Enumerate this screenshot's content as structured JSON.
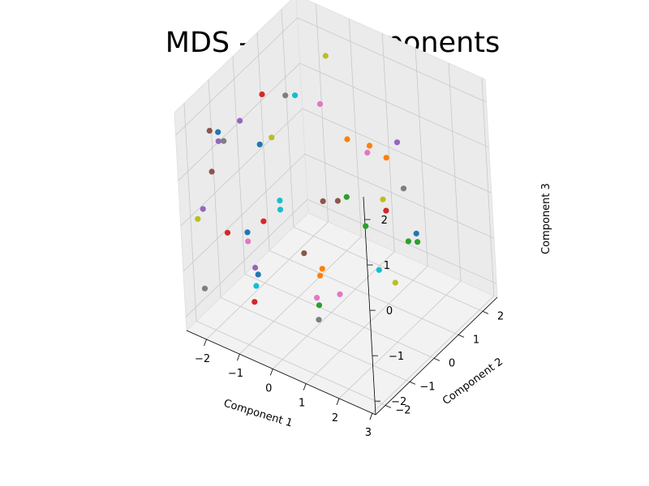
{
  "chart_data": {
    "type": "scatter",
    "title": "MDS - Two Components",
    "xlabel": "Component 1",
    "ylabel": "Component 2",
    "zlabel": "Component 3",
    "xlim": [
      -2.6,
      3.1
    ],
    "ylim": [
      -2.4,
      2.6
    ],
    "zlim": [
      -2.3,
      2.5
    ],
    "xticks": [
      -2,
      -1,
      0,
      1,
      2,
      3
    ],
    "yticks": [
      -2,
      -1,
      0,
      1,
      2
    ],
    "zticks": [
      -2,
      -1,
      0,
      1,
      2
    ],
    "xtick_labels": [
      "−2",
      "−1",
      "0",
      "1",
      "2",
      "3"
    ],
    "ytick_labels": [
      "−2",
      "−1",
      "0",
      "1",
      "2"
    ],
    "ztick_labels": [
      "−2",
      "−1",
      "0",
      "1",
      "2"
    ],
    "grid": true,
    "points": [
      {
        "x": -1.0,
        "y": 1.6,
        "z": 2.2,
        "color": "#bcbd22"
      },
      {
        "x": -2.0,
        "y": 0.3,
        "z": 1.7,
        "color": "#d62728"
      },
      {
        "x": -1.6,
        "y": 0.7,
        "z": 1.6,
        "color": "#7f7f7f"
      },
      {
        "x": -1.3,
        "y": 0.7,
        "z": 1.7,
        "color": "#17becf"
      },
      {
        "x": -0.7,
        "y": 0.9,
        "z": 1.6,
        "color": "#e377c2"
      },
      {
        "x": 1.3,
        "y": 1.3,
        "z": 1.2,
        "color": "#9467bd"
      },
      {
        "x": 0.0,
        "y": 1.0,
        "z": 1.0,
        "color": "#ff7f0e"
      },
      {
        "x": 0.6,
        "y": 1.1,
        "z": 1.0,
        "color": "#ff7f0e"
      },
      {
        "x": 0.6,
        "y": 1.0,
        "z": 0.9,
        "color": "#e377c2"
      },
      {
        "x": -2.1,
        "y": -0.5,
        "z": 1.5,
        "color": "#9467bd"
      },
      {
        "x": 1.1,
        "y": 1.1,
        "z": 0.9,
        "color": "#ff7f0e"
      },
      {
        "x": 1.5,
        "y": 1.2,
        "z": 0.3,
        "color": "#7f7f7f"
      },
      {
        "x": -1.7,
        "y": 0.2,
        "z": 0.9,
        "color": "#bcbd22"
      },
      {
        "x": -2.0,
        "y": 0.1,
        "z": 0.7,
        "color": "#1f77b4"
      },
      {
        "x": 1.0,
        "y": 1.0,
        "z": 0.0,
        "color": "#bcbd22"
      },
      {
        "x": -2.1,
        "y": -1.7,
        "z": 1.9,
        "color": "#8c564b"
      },
      {
        "x": -2.0,
        "y": -1.5,
        "z": 1.8,
        "color": "#1f77b4"
      },
      {
        "x": -0.3,
        "y": 0.3,
        "z": -0.1,
        "color": "#8c564b"
      },
      {
        "x": 0.0,
        "y": 0.5,
        "z": -0.1,
        "color": "#8c564b"
      },
      {
        "x": 0.2,
        "y": 0.6,
        "z": 0.0,
        "color": "#2ca02c"
      },
      {
        "x": 1.0,
        "y": 1.1,
        "z": -0.3,
        "color": "#d62728"
      },
      {
        "x": -2.0,
        "y": -1.5,
        "z": 1.6,
        "color": "#9467bd"
      },
      {
        "x": -2.0,
        "y": -1.3,
        "z": 1.5,
        "color": "#7f7f7f"
      },
      {
        "x": -1.0,
        "y": -0.5,
        "z": 0.1,
        "color": "#17becf"
      },
      {
        "x": -1.0,
        "y": -0.5,
        "z": -0.1,
        "color": "#17becf"
      },
      {
        "x": -2.1,
        "y": -1.7,
        "z": 1.0,
        "color": "#8c564b"
      },
      {
        "x": -1.3,
        "y": -0.8,
        "z": -0.3,
        "color": "#d62728"
      },
      {
        "x": 1.5,
        "y": 1.6,
        "z": -0.9,
        "color": "#1f77b4"
      },
      {
        "x": 0.5,
        "y": 0.9,
        "z": -0.7,
        "color": "#2ca02c"
      },
      {
        "x": 1.4,
        "y": 1.4,
        "z": -1.0,
        "color": "#2ca02c"
      },
      {
        "x": 1.6,
        "y": 1.5,
        "z": -1.0,
        "color": "#2ca02c"
      },
      {
        "x": -0.5,
        "y": -0.3,
        "z": -1.0,
        "color": "#8c564b"
      },
      {
        "x": -1.5,
        "y": -1.2,
        "z": -0.4,
        "color": "#1f77b4"
      },
      {
        "x": -2.2,
        "y": -2.0,
        "z": 0.3,
        "color": "#9467bd"
      },
      {
        "x": -1.5,
        "y": -1.2,
        "z": -0.6,
        "color": "#e377c2"
      },
      {
        "x": -1.8,
        "y": -1.6,
        "z": -0.3,
        "color": "#d62728"
      },
      {
        "x": -0.2,
        "y": 0.0,
        "z": -1.4,
        "color": "#ff7f0e"
      },
      {
        "x": -0.2,
        "y": -0.1,
        "z": -1.5,
        "color": "#ff7f0e"
      },
      {
        "x": 1.0,
        "y": 0.7,
        "z": -1.4,
        "color": "#17becf"
      },
      {
        "x": -1.4,
        "y": -1.1,
        "z": -1.2,
        "color": "#9467bd"
      },
      {
        "x": -2.3,
        "y": -2.1,
        "z": 0.1,
        "color": "#bcbd22"
      },
      {
        "x": -1.4,
        "y": -1.0,
        "z": -1.4,
        "color": "#1f77b4"
      },
      {
        "x": 0.3,
        "y": 0.0,
        "z": -1.8,
        "color": "#e377c2"
      },
      {
        "x": 1.4,
        "y": 0.8,
        "z": -1.6,
        "color": "#bcbd22"
      },
      {
        "x": -1.4,
        "y": -1.1,
        "z": -1.6,
        "color": "#17becf"
      },
      {
        "x": -0.2,
        "y": -0.2,
        "z": -2.1,
        "color": "#2ca02c"
      },
      {
        "x": -0.1,
        "y": -0.4,
        "z": -1.8,
        "color": "#e377c2"
      },
      {
        "x": -1.4,
        "y": -1.2,
        "z": -1.9,
        "color": "#d62728"
      },
      {
        "x": 0.0,
        "y": -0.5,
        "z": -2.2,
        "color": "#7f7f7f"
      },
      {
        "x": -2.2,
        "y": -2.1,
        "z": -1.4,
        "color": "#7f7f7f"
      }
    ]
  }
}
